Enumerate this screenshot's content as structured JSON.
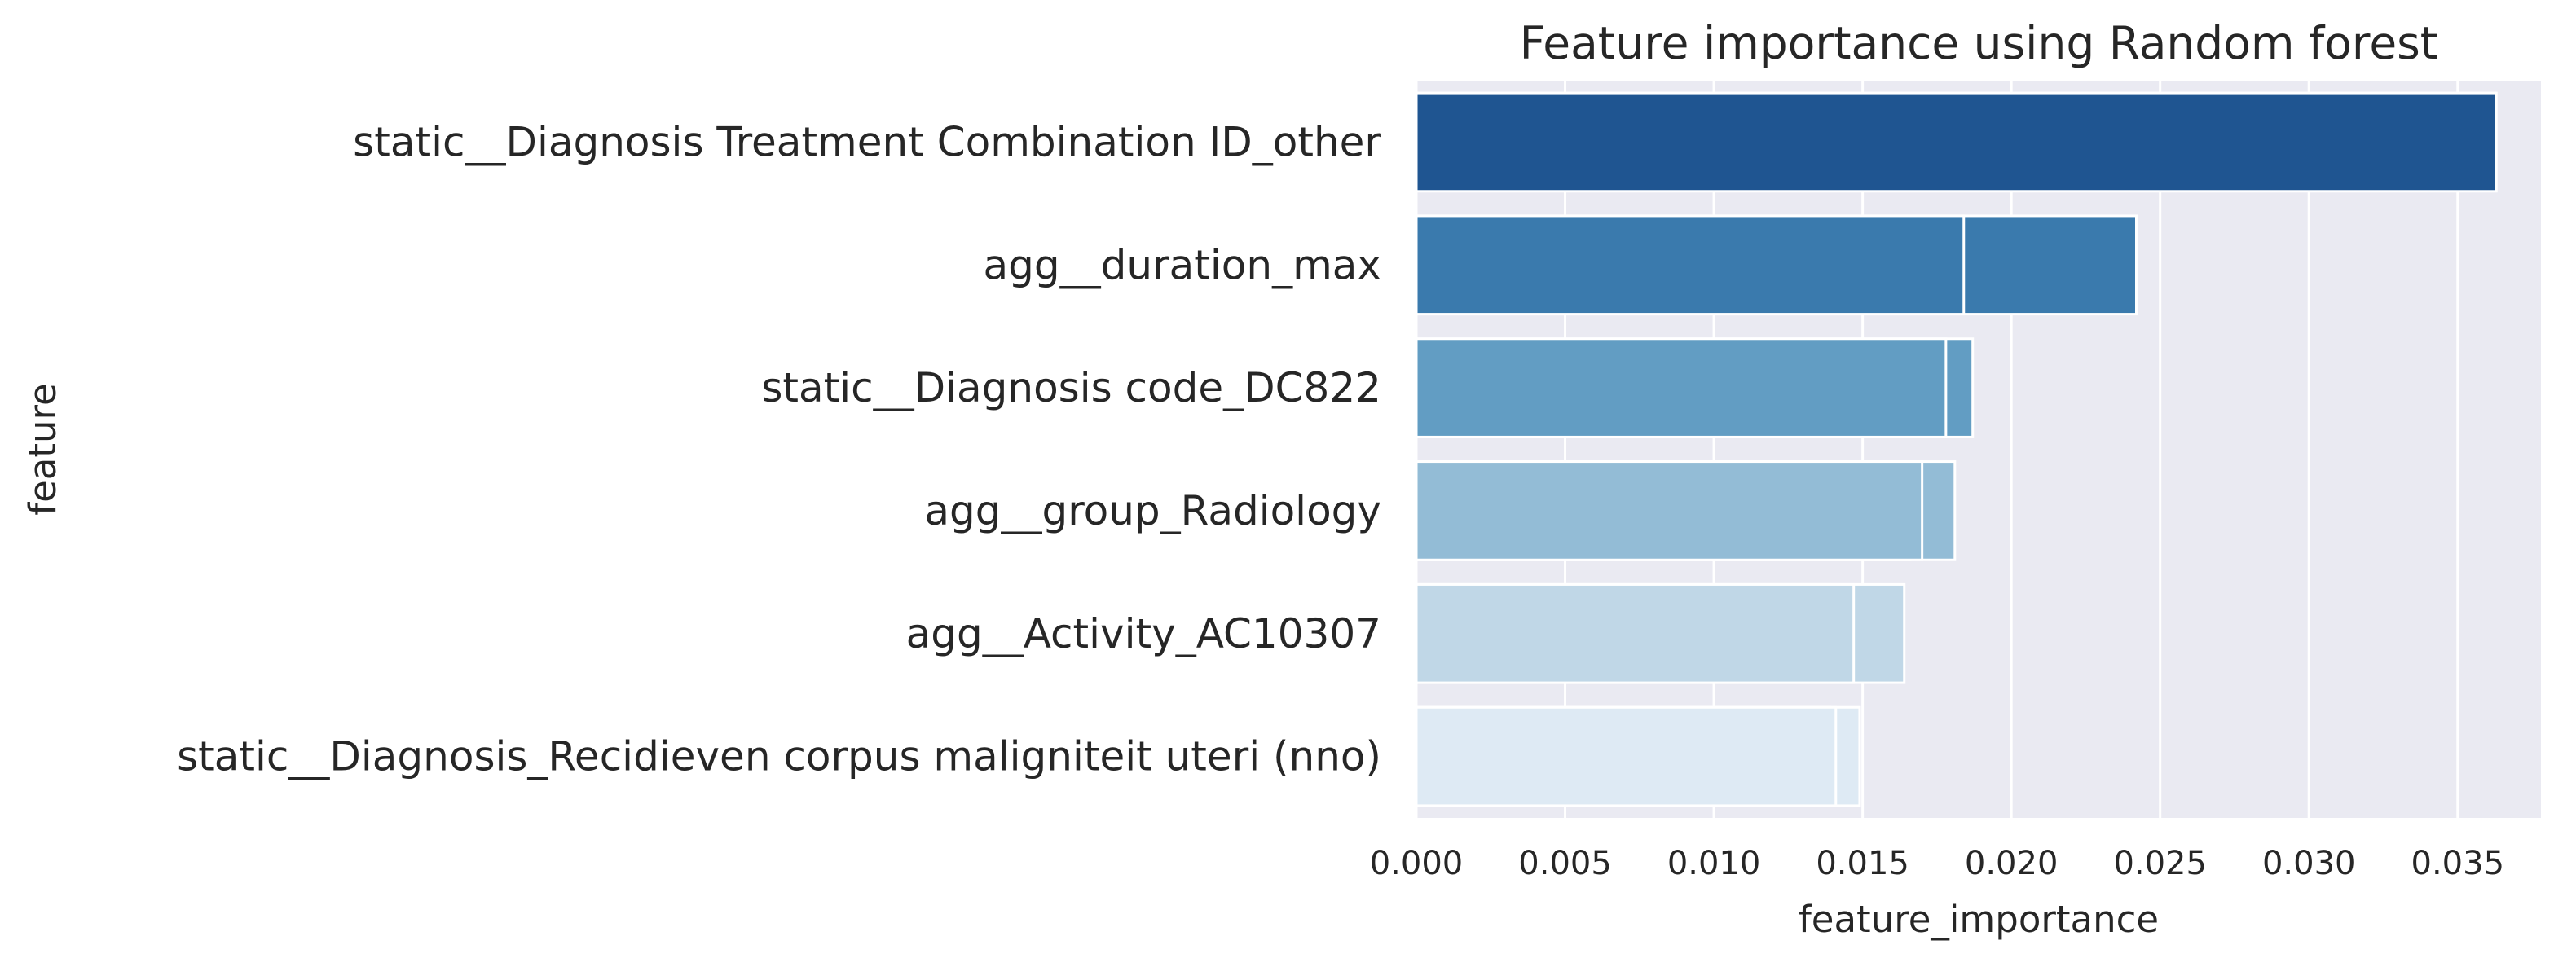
{
  "chart_data": {
    "type": "bar",
    "orientation": "horizontal",
    "title": "Feature importance using Random forest",
    "xlabel": "feature_importance",
    "ylabel": "feature",
    "xlim": [
      0,
      0.0378
    ],
    "xticks": [
      0.0,
      0.005,
      0.01,
      0.015,
      0.02,
      0.025,
      0.03,
      0.035
    ],
    "xtick_labels": [
      "0.000",
      "0.005",
      "0.010",
      "0.015",
      "0.020",
      "0.025",
      "0.030",
      "0.035"
    ],
    "grid": true,
    "background": "#eaeaf2",
    "categories": [
      "static__Diagnosis Treatment Combination ID_other",
      "agg__duration_max",
      "static__Diagnosis code_DC822",
      "agg__group_Radiology",
      "agg__Activity_AC10307",
      "static__Diagnosis_Recidieven corpus maligniteit uteri (nno)"
    ],
    "values": [
      0.0363,
      0.0242,
      0.0187,
      0.0181,
      0.0164,
      0.0149
    ],
    "overlay_values": [
      [],
      [
        0.0184
      ],
      [
        0.0178
      ],
      [
        0.014,
        0.0166,
        0.017
      ],
      [
        0.0139,
        0.0147
      ],
      [
        0.0139,
        0.0141
      ]
    ],
    "colors": [
      "#1f5591",
      "#3a7aad",
      "#629dc3",
      "#93bcd6",
      "#c0d7e7",
      "#deeaf4"
    ]
  }
}
